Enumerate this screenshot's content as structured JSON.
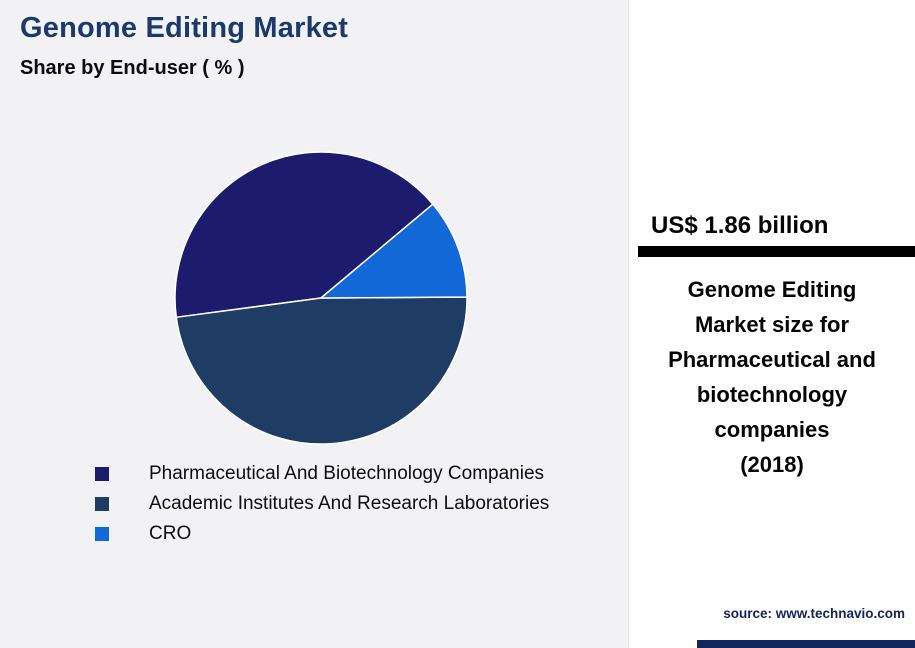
{
  "header": {
    "title": "Genome Editing Market",
    "subtitle": "Share by End-user ( % )"
  },
  "chart_data": {
    "type": "pie",
    "title": "Genome Editing Market - Share by End-user (%)",
    "unit": "percent",
    "labels": [
      "Pharmaceutical And Biotechnology Companies",
      "Academic Institutes And Research Laboratories",
      "CRO"
    ],
    "values": [
      41,
      48,
      11
    ],
    "colors": [
      "#1d1b6e",
      "#1f3c64",
      "#1168d6"
    ],
    "start_angle_deg": 40,
    "direction": "counterclockwise",
    "slice_border_color": "#ffffff",
    "legend_position": "bottom-left"
  },
  "stat_panel": {
    "value": "US$ 1.86 billion",
    "description": "Genome Editing Market size for Pharmaceutical and biotechnology companies",
    "year": "(2018)"
  },
  "footer": {
    "source": "source: www.technavio.com"
  },
  "colors": {
    "title_text": "#1a3a6e",
    "divider_bar": "#000000",
    "accent_navy": "#12265c",
    "left_background": "#f2f2f4",
    "panel_background": "#ffffff"
  }
}
